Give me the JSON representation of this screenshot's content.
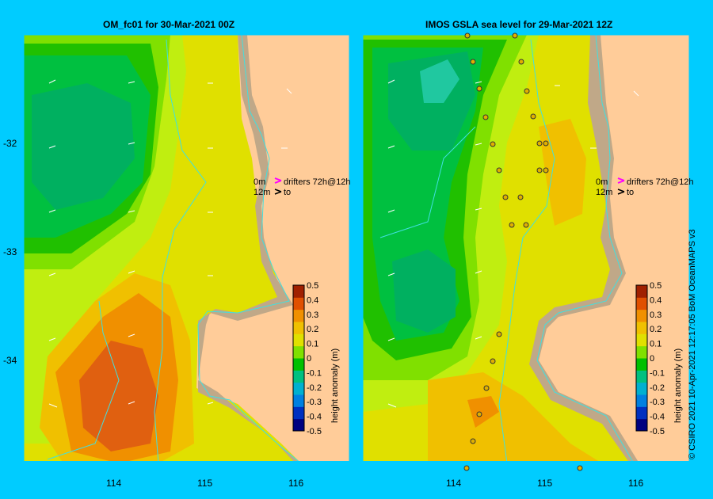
{
  "left_panel": {
    "title": "OM_fc01  for 30-Mar-2021 00Z",
    "lat_labels": [
      "-32",
      "-33",
      "-34"
    ],
    "lon_labels": [
      "114",
      "115",
      "116"
    ],
    "drifter_legend": {
      "line1_depth": "0m",
      "line1_text": "drifters 72h@12h",
      "line2_depth": "12m",
      "line2_text": "to"
    }
  },
  "right_panel": {
    "title": "IMOS GSLA sea level  for 29-Mar-2021 12Z",
    "lon_labels": [
      "114",
      "115",
      "116"
    ],
    "drifter_legend": {
      "line1_depth": "0m",
      "line1_text": "drifters 72h@12h",
      "line2_depth": "12m",
      "line2_text": "to"
    }
  },
  "colorbar": {
    "label": "height anomaly (m)",
    "ticks": [
      "0.5",
      "0.4",
      "0.3",
      "0.2",
      "0.1",
      "0",
      "-0.1",
      "-0.2",
      "-0.3",
      "-0.4",
      "-0.5"
    ],
    "colors": [
      "#000080",
      "#0030c0",
      "#0080e0",
      "#00b0d0",
      "#00c080",
      "#00c000",
      "#80e000",
      "#e0e000",
      "#f0c000",
      "#f09000",
      "#e05000",
      "#a02000"
    ]
  },
  "credit": "© CSIRO 2021   10-Apr-2021 12:17:05 BoM OceanMAPS v3",
  "colors": {
    "background": "#00ccff",
    "land": "#ffcc99",
    "shelf": "#c0a888",
    "coastline": "#40e0e0"
  }
}
